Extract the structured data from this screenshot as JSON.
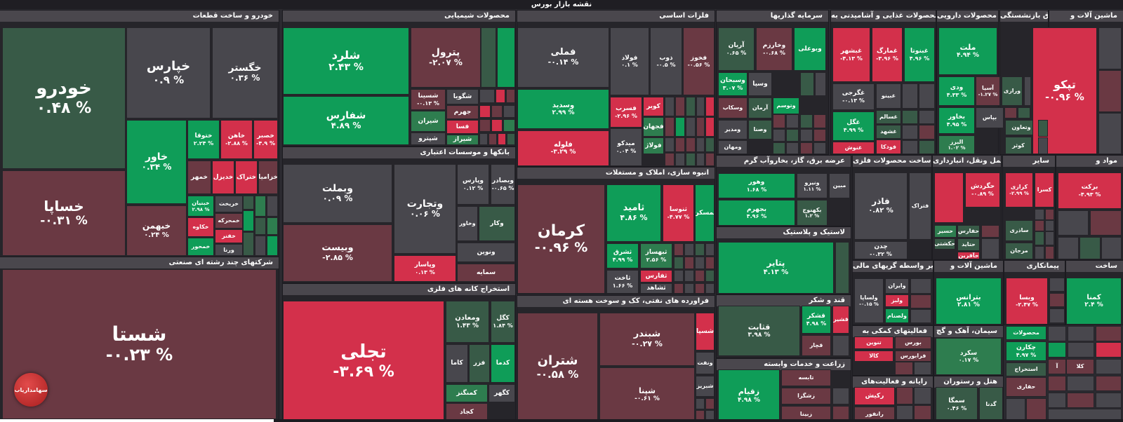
{
  "title": "نقشه بازار بورس",
  "logo_text": "سهامداریاب",
  "colors": {
    "strong_green": "#0f9d58",
    "strong_red": "#d3304b",
    "neutral": "#48474d"
  },
  "sectors": {
    "auto": "خودرو و ساخت قطعات",
    "multi": "شرکتهای چند رشته ای صنعتی",
    "chemical": "محصولات شیمیایی",
    "banks": "بانکها و موسسات اعتباری",
    "mining": "استخراج کانه های فلزی",
    "metals": "فلزات اساسی",
    "construction": "انبوه سازی، املاک و مستغلات",
    "refinery": "فراورده های نفتی، کک و سوخت هسته ای",
    "invest": "سرمایه گذاریها",
    "food": "محصولات غذایی و آشامیدنی به",
    "pharma": "محصولات دارویی",
    "fund": "بیمه وصندوق بازنشستگی",
    "machinery": "ماشین آلات و",
    "utilities": "عرضه برق، گاز، بخاروآب گرم",
    "metalprod": "ساخت محصولات فلزی",
    "transport": "حمل ونقل، انبارداری",
    "other": "سایر",
    "materials": "مواد و",
    "plastic": "لاستیک و پلاستیک",
    "financial": "سایر واسطه گریهای مالی",
    "machinery2": "ماشین آلات و",
    "contractor": "پیمانکاری",
    "build": "ساخت",
    "sugar": "قند و شکر",
    "support": "فعالیتهای کمکی به",
    "cement": "سیمان، آهک و گچ",
    "agri": "زراعت و خدمات وابسته",
    "computer": "رایانه و فعالیت‌های",
    "hotel": "هتل و رستوران"
  },
  "tiles": [
    {
      "name": "خودرو",
      "pct": "٠.۴٨ %"
    },
    {
      "name": "خپارس",
      "pct": "٠.٩ %"
    },
    {
      "name": "خگستر",
      "pct": "٠.٣۶ %"
    },
    {
      "name": "خساپا",
      "pct": "-٠.٣١ %"
    },
    {
      "name": "خاور",
      "pct": "٠.٣۴ %"
    },
    {
      "name": "ختوقا",
      "pct": "٢.٢۴ %"
    },
    {
      "name": "خاهن",
      "pct": "-٢.٨٨ %"
    },
    {
      "name": "خصبر",
      "pct": "-۴.٩ %"
    },
    {
      "name": "خمهر",
      "pct": ""
    },
    {
      "name": "خدیزل",
      "pct": ""
    },
    {
      "name": "ختراک",
      "pct": ""
    },
    {
      "name": "خزامیا",
      "pct": ""
    },
    {
      "name": "خبهمن",
      "pct": "٠.٢۴ %"
    },
    {
      "name": "خبنیان",
      "pct": "٢.٩٨ %"
    },
    {
      "name": "خکاوه",
      "pct": ""
    },
    {
      "name": "خمحور",
      "pct": ""
    },
    {
      "name": "خریخت",
      "pct": ""
    },
    {
      "name": "خمحرکه",
      "pct": ""
    },
    {
      "name": "خفنر",
      "pct": ""
    },
    {
      "name": "ورنا",
      "pct": ""
    },
    {
      "name": "شستا",
      "pct": "-٠.٢٣ %"
    },
    {
      "name": "شلرد",
      "pct": "٢.۴٣ %"
    },
    {
      "name": "پترول",
      "pct": "-٢.٠٧ %"
    },
    {
      "name": "شفارس",
      "pct": "۴.٨٩ %"
    },
    {
      "name": "شسینا",
      "pct": "-٠.١٣ %"
    },
    {
      "name": "شگویا",
      "pct": ""
    },
    {
      "name": "جهرم",
      "pct": ""
    },
    {
      "name": "شیران",
      "pct": ""
    },
    {
      "name": "فسا",
      "pct": ""
    },
    {
      "name": "شپترو",
      "pct": ""
    },
    {
      "name": "شیراز",
      "pct": ""
    },
    {
      "name": "وبملت",
      "pct": "٠.٠٩ %"
    },
    {
      "name": "وتجارت",
      "pct": "٠.٠۶ %"
    },
    {
      "name": "وپارس",
      "pct": "٠.١٢ %"
    },
    {
      "name": "وبصادر",
      "pct": "-٠.۶۵ %"
    },
    {
      "name": "وبیست",
      "pct": "-٢.٨۵ %"
    },
    {
      "name": "وپاسار",
      "pct": "٠.١٣ %"
    },
    {
      "name": "وخاور",
      "pct": ""
    },
    {
      "name": "وکار",
      "pct": ""
    },
    {
      "name": "ونوین",
      "pct": ""
    },
    {
      "name": "سمایه",
      "pct": ""
    },
    {
      "name": "تجلی",
      "pct": "-٣.۶٩ %"
    },
    {
      "name": "ومعادن",
      "pct": "١.۴٣ %"
    },
    {
      "name": "کگل",
      "pct": "١.٨۴ %"
    },
    {
      "name": "کاما",
      "pct": ""
    },
    {
      "name": "فزر",
      "pct": ""
    },
    {
      "name": "کدما",
      "pct": ""
    },
    {
      "name": "کمنگنز",
      "pct": ""
    },
    {
      "name": "کگهر",
      "pct": ""
    },
    {
      "name": "کجاد",
      "pct": ""
    },
    {
      "name": "فملی",
      "pct": "-٠.١۴ %"
    },
    {
      "name": "فولاد",
      "pct": "٠.١ %"
    },
    {
      "name": "ذوب",
      "pct": "-٠.۵ %"
    },
    {
      "name": "فخوز",
      "pct": "-٠.۵۶ %"
    },
    {
      "name": "وسدید",
      "pct": "٢.٩٩ %"
    },
    {
      "name": "فسرب",
      "pct": "-٢.٩۶ %"
    },
    {
      "name": "کویر",
      "pct": ""
    },
    {
      "name": "فجهان",
      "pct": ""
    },
    {
      "name": "فلوله",
      "pct": "-٣.٢٩ %"
    },
    {
      "name": "میدکو",
      "pct": "٠.٠۴ %"
    },
    {
      "name": "فولاژ",
      "pct": ""
    },
    {
      "name": "کرمان",
      "pct": "-٠.٩۶ %"
    },
    {
      "name": "ثامید",
      "pct": "۴.٨۶ %"
    },
    {
      "name": "ثنوسا",
      "pct": "-۴.٧٧ %"
    },
    {
      "name": "ثمسکن",
      "pct": ""
    },
    {
      "name": "ثشرق",
      "pct": "۴.٩٩ %"
    },
    {
      "name": "ثبهساز",
      "pct": "٢.۵۶ %"
    },
    {
      "name": "ثاخت",
      "pct": "١.۶۶ %"
    },
    {
      "name": "ثفارس",
      "pct": ""
    },
    {
      "name": "ثشاهد",
      "pct": ""
    },
    {
      "name": "شتران",
      "pct": "-٠.۵٨ %"
    },
    {
      "name": "شبندر",
      "pct": "-٠.٢٧ %"
    },
    {
      "name": "شپنا",
      "pct": "-٠.۶١ %"
    },
    {
      "name": "شسپا",
      "pct": ""
    },
    {
      "name": "ونفت",
      "pct": ""
    },
    {
      "name": "شبریز",
      "pct": ""
    },
    {
      "name": "آریان",
      "pct": "٠.۶۵ %"
    },
    {
      "name": "وخارزم",
      "pct": "-٠.۶٨ %"
    },
    {
      "name": "وبوعلی",
      "pct": ""
    },
    {
      "name": "وسبحان",
      "pct": "٣.٠٧ %"
    },
    {
      "name": "وسپا",
      "pct": ""
    },
    {
      "name": "وسکاب",
      "pct": ""
    },
    {
      "name": "وتوسم",
      "pct": ""
    },
    {
      "name": "آرمان",
      "pct": ""
    },
    {
      "name": "ومدیر",
      "pct": ""
    },
    {
      "name": "ومهان",
      "pct": ""
    },
    {
      "name": "وصنا",
      "pct": ""
    },
    {
      "name": "غبشهر",
      "pct": "-۴.١٣ %"
    },
    {
      "name": "غمارگ",
      "pct": "-٣.٩۶ %"
    },
    {
      "name": "غبنوتا",
      "pct": "۴.٩۶ %"
    },
    {
      "name": "غگرجی",
      "pct": "-٠.١٣ %"
    },
    {
      "name": "غبینو",
      "pct": ""
    },
    {
      "name": "غگل",
      "pct": "۴.٩٩ %"
    },
    {
      "name": "غسالم",
      "pct": ""
    },
    {
      "name": "غشهد",
      "pct": ""
    },
    {
      "name": "غنوش",
      "pct": ""
    },
    {
      "name": "فودکا",
      "pct": ""
    },
    {
      "name": "ملت",
      "pct": "۴.٩۴ %"
    },
    {
      "name": "وسین",
      "pct": ""
    },
    {
      "name": "ودی",
      "pct": "۴.٣٣ %"
    },
    {
      "name": "آسیا",
      "pct": "-١.٢٧ %"
    },
    {
      "name": "ورازی",
      "pct": ""
    },
    {
      "name": "بخاور",
      "pct": "۴.٩۵ %"
    },
    {
      "name": "بپاس",
      "pct": ""
    },
    {
      "name": "البرز",
      "pct": "١.٠٢ %"
    },
    {
      "name": "وتعاون",
      "pct": ""
    },
    {
      "name": "کوثر",
      "pct": ""
    },
    {
      "name": "تپکو",
      "pct": "-٠.٩۶ %"
    },
    {
      "name": "وهور",
      "pct": "١.۶٨ %"
    },
    {
      "name": "ونیرو",
      "pct": "١.١١ %"
    },
    {
      "name": "مبین",
      "pct": ""
    },
    {
      "name": "بجهرم",
      "pct": "۴.٩۶ %"
    },
    {
      "name": "بکهنوج",
      "pct": "١.٢ %"
    },
    {
      "name": "فاذر",
      "pct": "٠.٨٢ %"
    },
    {
      "name": "فتراک",
      "pct": ""
    },
    {
      "name": "چدن",
      "pct": "-٠.٣٢ %"
    },
    {
      "name": "حگردش",
      "pct": "-٠.٨٩ %"
    },
    {
      "name": "حریل",
      "pct": "۴.٩٧ %"
    },
    {
      "name": "حسیر",
      "pct": ""
    },
    {
      "name": "حفارس",
      "pct": ""
    },
    {
      "name": "حکشتی",
      "pct": ""
    },
    {
      "name": "حتاید",
      "pct": ""
    },
    {
      "name": "حآفرین",
      "pct": ""
    },
    {
      "name": "کرازی",
      "pct": "-٢.٩٩ %"
    },
    {
      "name": "کسرا",
      "pct": ""
    },
    {
      "name": "ساذری",
      "pct": ""
    },
    {
      "name": "مرجان",
      "pct": ""
    },
    {
      "name": "برکت",
      "pct": "-۴.٩٣ %"
    },
    {
      "name": "پتایر",
      "pct": "۴.١٣ %"
    },
    {
      "name": "وایران",
      "pct": ""
    },
    {
      "name": "ولساپا",
      "pct": "-٠.١۵ %"
    },
    {
      "name": "ولبز",
      "pct": ""
    },
    {
      "name": "ولصنام",
      "pct": ""
    },
    {
      "name": "بترانس",
      "pct": "٢.٨١ %"
    },
    {
      "name": "وبسا",
      "pct": "-٢.۴٧ %"
    },
    {
      "name": "کمنا",
      "pct": "٢.۴ %"
    },
    {
      "name": "قثابت",
      "pct": "٣.٩٨ %"
    },
    {
      "name": "قشکر",
      "pct": "۴.٩٨ %"
    },
    {
      "name": "قشیر",
      "pct": ""
    },
    {
      "name": "قچار",
      "pct": ""
    },
    {
      "name": "تنوین",
      "pct": ""
    },
    {
      "name": "بورس",
      "pct": ""
    },
    {
      "name": "کالا",
      "pct": ""
    },
    {
      "name": "فرابورس",
      "pct": ""
    },
    {
      "name": "سکرد",
      "pct": "٠.١٧ %"
    },
    {
      "name": "چکارن",
      "pct": "۴.٩٧ %"
    },
    {
      "name": "استخراج",
      "pct": ""
    },
    {
      "name": "محصولات",
      "pct": ""
    },
    {
      "name": "حفاری",
      "pct": ""
    },
    {
      "name": "آ",
      "pct": ""
    },
    {
      "name": "کلا",
      "pct": ""
    },
    {
      "name": "زقیام",
      "pct": "۴.٩٨ %"
    },
    {
      "name": "تابسه",
      "pct": ""
    },
    {
      "name": "زشگزا",
      "pct": ""
    },
    {
      "name": "زبینا",
      "pct": ""
    },
    {
      "name": "رکیش",
      "pct": ""
    },
    {
      "name": "رانفور",
      "pct": ""
    },
    {
      "name": "سمگا",
      "pct": "٠.۴۶ %"
    },
    {
      "name": "گدنا",
      "pct": ""
    }
  ]
}
